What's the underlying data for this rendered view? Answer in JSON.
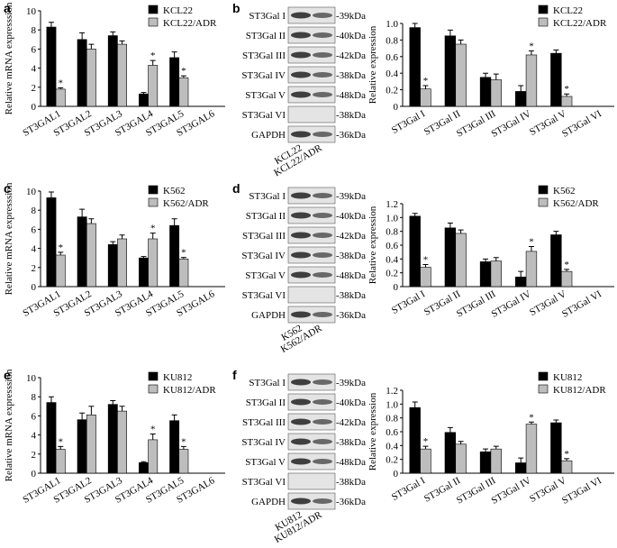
{
  "chart_data": [
    {
      "type": "bar",
      "panel_label": "a",
      "ylabel": "Relative mRNA expresssion",
      "categories": [
        "ST3GAL1",
        "ST3GAL2",
        "ST3GAL3",
        "ST3GAL4",
        "ST3GAL5",
        "ST3GAL6"
      ],
      "series": [
        {
          "name": "KCL22",
          "color": "#000000",
          "values": [
            8.3,
            7.0,
            7.4,
            1.3,
            5.1,
            0
          ],
          "error": [
            0.5,
            0.7,
            0.4,
            0.15,
            0.6,
            0
          ],
          "annotations": [
            null,
            null,
            null,
            null,
            null,
            null
          ]
        },
        {
          "name": "KCL22/ADR",
          "color": "#bdbdbd",
          "values": [
            1.8,
            6.0,
            6.5,
            4.3,
            3.0,
            0
          ],
          "error": [
            0.15,
            0.5,
            0.35,
            0.5,
            0.2,
            0
          ],
          "annotations": [
            "*",
            null,
            null,
            "*",
            "*",
            null
          ]
        }
      ],
      "ylim": [
        0,
        10
      ],
      "yticks": [
        0,
        2,
        4,
        6,
        8,
        10
      ],
      "legend": "upper right"
    },
    {
      "type": "bar",
      "ylabel": "Relative expression",
      "categories": [
        "ST3Gal I",
        "ST3Gal II",
        "ST3Gal III",
        "ST3Gal IV",
        "ST3Gal V",
        "ST3Gal VI"
      ],
      "series": [
        {
          "name": "KCL22",
          "color": "#000000",
          "values": [
            0.95,
            0.85,
            0.35,
            0.18,
            0.64,
            0
          ],
          "error": [
            0.05,
            0.07,
            0.05,
            0.07,
            0.04,
            0
          ],
          "annotations": [
            null,
            null,
            null,
            null,
            null,
            null
          ]
        },
        {
          "name": "KCL22/ADR",
          "color": "#bdbdbd",
          "values": [
            0.21,
            0.75,
            0.32,
            0.62,
            0.12,
            0
          ],
          "error": [
            0.04,
            0.05,
            0.07,
            0.05,
            0.03,
            0
          ],
          "annotations": [
            "*",
            null,
            null,
            "*",
            "*",
            null
          ]
        }
      ],
      "ylim": [
        0,
        1
      ],
      "yticks": [
        0,
        0.2,
        0.4,
        0.6,
        0.8,
        {
          "value": 1,
          "label": "1.0"
        }
      ],
      "legend": "upper right"
    },
    {
      "type": "bar",
      "panel_label": "c",
      "ylabel": "Relative mRNA expresssion",
      "categories": [
        "ST3GAL1",
        "ST3GAL2",
        "ST3GAL3",
        "ST3GAL4",
        "ST3GAL5",
        "ST3GAL6"
      ],
      "series": [
        {
          "name": "K562",
          "color": "#000000",
          "values": [
            9.3,
            7.3,
            4.4,
            3.0,
            6.4,
            0
          ],
          "error": [
            0.6,
            0.8,
            0.3,
            0.15,
            0.7,
            0
          ],
          "annotations": [
            null,
            null,
            null,
            null,
            null,
            null
          ]
        },
        {
          "name": "K562/ADR",
          "color": "#bdbdbd",
          "values": [
            3.3,
            6.6,
            5.0,
            5.0,
            2.9,
            0
          ],
          "error": [
            0.3,
            0.5,
            0.4,
            0.6,
            0.15,
            0
          ],
          "annotations": [
            "*",
            null,
            null,
            "*",
            "*",
            null
          ]
        }
      ],
      "ylim": [
        0,
        10
      ],
      "yticks": [
        0,
        2,
        4,
        6,
        8,
        10
      ],
      "legend": "upper right"
    },
    {
      "type": "bar",
      "ylabel": "Relative expression",
      "categories": [
        "ST3Gal I",
        "ST3Gal II",
        "ST3Gal III",
        "ST3Gal IV",
        "ST3Gal V",
        "ST3Gal VI"
      ],
      "series": [
        {
          "name": "K562",
          "color": "#000000",
          "values": [
            1.02,
            0.85,
            0.36,
            0.14,
            0.75,
            0
          ],
          "error": [
            0.04,
            0.07,
            0.04,
            0.08,
            0.05,
            0
          ],
          "annotations": [
            null,
            null,
            null,
            null,
            null,
            null
          ]
        },
        {
          "name": "K562/ADR",
          "color": "#bdbdbd",
          "values": [
            0.28,
            0.77,
            0.37,
            0.51,
            0.22,
            0
          ],
          "error": [
            0.04,
            0.05,
            0.05,
            0.07,
            0.03,
            0
          ],
          "annotations": [
            "*",
            null,
            null,
            "*",
            "*",
            null
          ]
        }
      ],
      "ylim": [
        0,
        1.2
      ],
      "yticks": [
        0,
        0.2,
        0.4,
        0.6,
        0.8,
        {
          "value": 1,
          "label": "1.0"
        },
        1.2
      ],
      "legend": "upper right"
    },
    {
      "type": "bar",
      "panel_label": "e",
      "ylabel": "Relative mRNA expresssion",
      "categories": [
        "ST3GAL1",
        "ST3GAL2",
        "ST3GAL3",
        "ST3GAL4",
        "ST3GAL5",
        "ST3GAL6"
      ],
      "series": [
        {
          "name": "KU812",
          "color": "#000000",
          "values": [
            7.4,
            5.6,
            7.2,
            1.1,
            5.5,
            0
          ],
          "error": [
            0.6,
            0.7,
            0.4,
            0.1,
            0.6,
            0
          ],
          "annotations": [
            null,
            null,
            null,
            null,
            null,
            null
          ]
        },
        {
          "name": "KU812/ADR",
          "color": "#bdbdbd",
          "values": [
            2.5,
            6.1,
            6.5,
            3.5,
            2.5,
            0
          ],
          "error": [
            0.3,
            0.9,
            0.5,
            0.6,
            0.3,
            0
          ],
          "annotations": [
            "*",
            null,
            null,
            "*",
            "*",
            null
          ]
        }
      ],
      "ylim": [
        0,
        10
      ],
      "yticks": [
        0,
        2,
        4,
        6,
        8,
        10
      ],
      "legend": "upper right"
    },
    {
      "type": "bar",
      "ylabel": "Relative expression",
      "categories": [
        "ST3Gal I",
        "ST3Gal II",
        "ST3Gal III",
        "ST3Gal IV",
        "ST3Gal V",
        "ST3Gal VI"
      ],
      "series": [
        {
          "name": "KU812",
          "color": "#000000",
          "values": [
            0.95,
            0.59,
            0.31,
            0.15,
            0.73,
            0
          ],
          "error": [
            0.08,
            0.07,
            0.04,
            0.07,
            0.04,
            0
          ],
          "annotations": [
            null,
            null,
            null,
            null,
            null,
            null
          ]
        },
        {
          "name": "KU812/ADR",
          "color": "#bdbdbd",
          "values": [
            0.35,
            0.42,
            0.35,
            0.71,
            0.18,
            0
          ],
          "error": [
            0.04,
            0.04,
            0.04,
            0.03,
            0.03,
            0
          ],
          "annotations": [
            "*",
            null,
            null,
            "*",
            "*",
            null
          ]
        }
      ],
      "ylim": [
        0,
        1.2
      ],
      "yticks": [
        0,
        0.2,
        0.4,
        0.6,
        0.8,
        {
          "value": 1,
          "label": "1.0"
        },
        1.2
      ],
      "legend": "upper right"
    }
  ],
  "blots": [
    {
      "panel_label": "b",
      "lanes": [
        "KCL22",
        "KCL22/ADR"
      ],
      "rows": [
        {
          "protein": "ST3Gal I",
          "size": "-39kDa"
        },
        {
          "protein": "ST3Gal II",
          "size": "-40kDa"
        },
        {
          "protein": "ST3Gal III",
          "size": "-42kDa"
        },
        {
          "protein": "ST3Gal IV",
          "size": "-38kDa"
        },
        {
          "protein": "ST3Gal V",
          "size": "-48kDa"
        },
        {
          "protein": "ST3Gal VI",
          "size": "-38kDa"
        },
        {
          "protein": "GAPDH",
          "size": "-36kDa"
        }
      ]
    },
    {
      "panel_label": "d",
      "lanes": [
        "K562",
        "K562/ADR"
      ],
      "rows": [
        {
          "protein": "ST3Gal I",
          "size": "-39kDa"
        },
        {
          "protein": "ST3Gal II",
          "size": "-40kDa"
        },
        {
          "protein": "ST3Gal III",
          "size": "-42kDa"
        },
        {
          "protein": "ST3Gal IV",
          "size": "-38kDa"
        },
        {
          "protein": "ST3Gal V",
          "size": "-48kDa"
        },
        {
          "protein": "ST3Gal VI",
          "size": "-38kDa"
        },
        {
          "protein": "GAPDH",
          "size": "-36kDa"
        }
      ]
    },
    {
      "panel_label": "f",
      "lanes": [
        "KU812",
        "KU812/ADR"
      ],
      "rows": [
        {
          "protein": "ST3Gal I",
          "size": "-39kDa"
        },
        {
          "protein": "ST3Gal II",
          "size": "-40kDa"
        },
        {
          "protein": "ST3Gal III",
          "size": "-42kDa"
        },
        {
          "protein": "ST3Gal IV",
          "size": "-38kDa"
        },
        {
          "protein": "ST3Gal V",
          "size": "-48kDa"
        },
        {
          "protein": "ST3Gal VI",
          "size": "-38kDa"
        },
        {
          "protein": "GAPDH",
          "size": "-36kDa"
        }
      ]
    }
  ]
}
